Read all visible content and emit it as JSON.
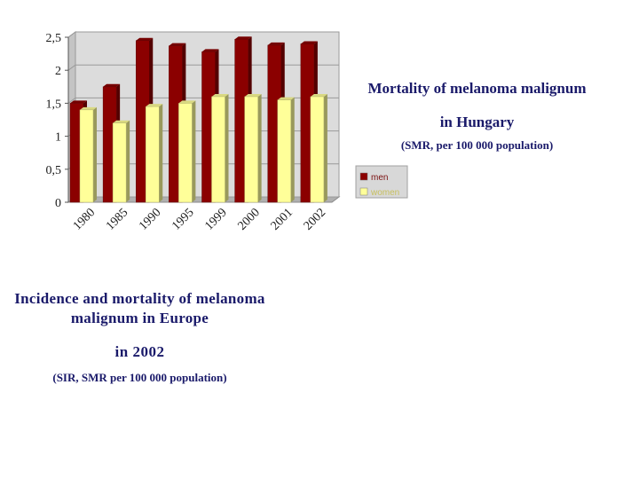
{
  "chart_data": {
    "type": "bar",
    "categories": [
      "1980",
      "1985",
      "1990",
      "1995",
      "1999",
      "2000",
      "2001",
      "2002"
    ],
    "series": [
      {
        "name": "men",
        "values": [
          1.5,
          1.75,
          2.45,
          2.37,
          2.28,
          2.47,
          2.38,
          2.4
        ],
        "color": "#8b0000"
      },
      {
        "name": "women",
        "values": [
          1.4,
          1.2,
          1.45,
          1.5,
          1.6,
          1.6,
          1.55,
          1.6
        ],
        "color": "#ffff99"
      }
    ],
    "y_ticks": [
      "0",
      "0,5",
      "1",
      "1,5",
      "2",
      "2,5"
    ],
    "ylim": [
      0,
      2.5
    ],
    "grid": true,
    "legend_position": "right",
    "background": "#dcdcdc"
  },
  "hungary_title": {
    "line1": "Mortality of melanoma malignum",
    "line2": "in Hungary",
    "line3": "(SMR, per 100 000 population)"
  },
  "europe_title": {
    "line1": "Incidence and mortality of melanoma malignum in Europe",
    "line2": "in 2002",
    "line3": "(SIR, SMR per 100 000 population)"
  }
}
